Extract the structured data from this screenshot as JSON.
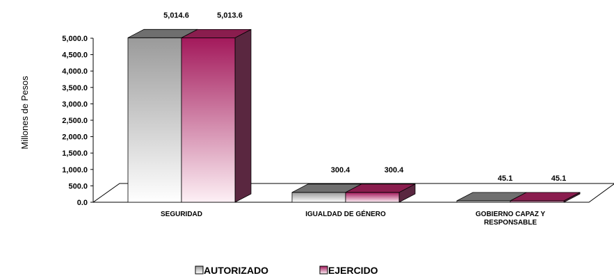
{
  "chart_data": {
    "type": "bar",
    "ylabel": "Millones de Pesos",
    "categories": [
      "SEGURIDAD",
      "IGUALDAD DE GÉNERO",
      "GOBIERNO CAPAZ Y RESPONSABLE"
    ],
    "category_lines": [
      [
        "SEGURIDAD"
      ],
      [
        "IGUALDAD DE GÉNERO"
      ],
      [
        "GOBIERNO CAPAZ Y",
        "RESPONSABLE"
      ]
    ],
    "series": [
      {
        "name": "AUTORIZADO",
        "values": [
          5014.6,
          300.4,
          45.1
        ],
        "labels": [
          "5,014.6",
          "300.4",
          "45.1"
        ]
      },
      {
        "name": "EJERCIDO",
        "values": [
          5013.6,
          300.4,
          45.1
        ],
        "labels": [
          "5,013.6",
          "300.4",
          "45.1"
        ]
      }
    ],
    "yticks": [
      "0.0",
      "500.0",
      "1,000.0",
      "1,500.0",
      "2,000.0",
      "2,500.0",
      "3,000.0",
      "3,500.0",
      "4,000.0",
      "4,500.0",
      "5,000.0"
    ],
    "ylim": [
      0,
      5000
    ],
    "legend_position": "bottom",
    "grid": false,
    "colors": {
      "autorizado_front_top": "#9a9a9a",
      "autorizado_front_bottom": "#ffffff",
      "autorizado_top": "#6f6f6f",
      "autorizado_side": "#5a5a5a",
      "ejercido_front_top": "#a3195b",
      "ejercido_front_bottom": "#fdf0f5",
      "ejercido_top": "#8a1d4e",
      "ejercido_side": "#5a2740",
      "floor": "#ffffff",
      "axis": "#000000"
    }
  }
}
